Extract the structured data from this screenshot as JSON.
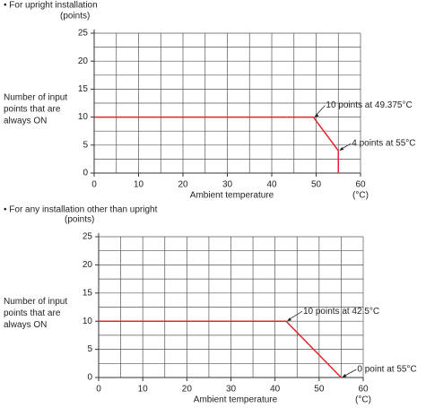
{
  "chart_data": [
    {
      "type": "line",
      "title": "• For upright installation",
      "yunit": "(points)",
      "ylabel": [
        "Number of input",
        "points that are",
        "always ON"
      ],
      "xlabel": "Ambient temperature",
      "xunit": "(°C)",
      "xlim": [
        0,
        60
      ],
      "ylim": [
        0,
        25
      ],
      "xticks": [
        0,
        10,
        20,
        30,
        40,
        50,
        60
      ],
      "yticks": [
        0,
        5,
        10,
        15,
        20,
        25
      ],
      "x_grid": [
        5,
        10,
        15,
        20,
        25,
        30,
        35,
        40,
        45,
        50,
        55,
        60
      ],
      "y_grid": [
        2.5,
        5,
        7.5,
        10,
        12.5,
        15,
        17.5,
        20,
        22.5,
        25
      ],
      "series": [
        {
          "color": "#e0262b",
          "x": [
            0,
            49.375,
            55,
            55
          ],
          "values": [
            10,
            10,
            4,
            0
          ]
        }
      ],
      "annotations": [
        "10 points at 49.375°C",
        "4 points at 55°C"
      ]
    },
    {
      "type": "line",
      "title": "• For any installation other than upright",
      "yunit": "(points)",
      "ylabel": [
        "Number of input",
        "points that are",
        "always ON"
      ],
      "xlabel": "Ambient temperature",
      "xunit": "(°C)",
      "xlim": [
        0,
        60
      ],
      "ylim": [
        0,
        25
      ],
      "xticks": [
        0,
        10,
        20,
        30,
        40,
        50,
        60
      ],
      "yticks": [
        0,
        5,
        10,
        15,
        20,
        25
      ],
      "x_grid": [
        5,
        10,
        15,
        20,
        25,
        30,
        35,
        40,
        45,
        50,
        55,
        60
      ],
      "y_grid": [
        2.5,
        5,
        7.5,
        10,
        12.5,
        15,
        17.5,
        20,
        22.5,
        25
      ],
      "series": [
        {
          "color": "#e0262b",
          "x": [
            0,
            42.5,
            55
          ],
          "values": [
            10,
            10,
            0
          ]
        }
      ],
      "annotations": [
        "10 points at 42.5°C",
        "0 point at 55°C"
      ]
    }
  ]
}
